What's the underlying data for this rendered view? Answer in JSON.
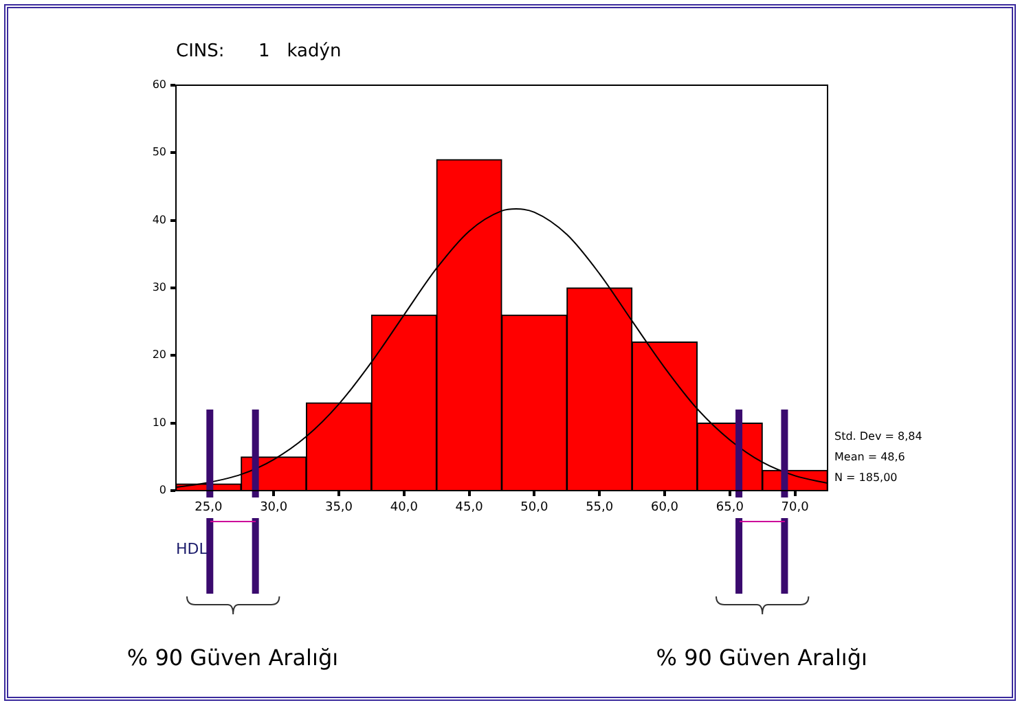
{
  "chart_data": {
    "type": "histogram",
    "title": "CINS:      1   kadýn",
    "xlabel": "HDL",
    "bins": [
      22.5,
      27.5,
      32.5,
      37.5,
      42.5,
      47.5,
      52.5,
      57.5,
      62.5,
      67.5,
      72.5
    ],
    "values": [
      1,
      5,
      13,
      26,
      49,
      26,
      30,
      22,
      10,
      3
    ],
    "color": "#ff0000",
    "series": [
      {
        "type": "line",
        "color": "#000000",
        "x": [
          22.5,
          25,
          27.5,
          30,
          32.5,
          35,
          37.5,
          40,
          42.5,
          45,
          47.5,
          48.6,
          50,
          52.5,
          55,
          57.5,
          60,
          62.5,
          65,
          67.5,
          70,
          72.5
        ],
        "values": [
          0.5,
          1.2,
          2.4,
          4.6,
          8.0,
          12.8,
          19.0,
          26.0,
          32.9,
          38.4,
          41.4,
          41.7,
          41.2,
          37.9,
          32.1,
          25.1,
          18.2,
          12.1,
          7.5,
          4.2,
          2.2,
          1.1
        ]
      }
    ],
    "xlim": [
      22.5,
      72.5
    ],
    "ylim": [
      0,
      60
    ],
    "xticks": [
      {
        "value": 25,
        "label": "25,0"
      },
      {
        "value": 30,
        "label": "30,0"
      },
      {
        "value": 35,
        "label": "35,0"
      },
      {
        "value": 40,
        "label": "40,0"
      },
      {
        "value": 45,
        "label": "45,0"
      },
      {
        "value": 50,
        "label": "50,0"
      },
      {
        "value": 55,
        "label": "55,0"
      },
      {
        "value": 60,
        "label": "60,0"
      },
      {
        "value": 65,
        "label": "65,0"
      },
      {
        "value": 70,
        "label": "70,0"
      }
    ],
    "yticks": [
      0,
      10,
      20,
      30,
      40,
      50,
      60
    ],
    "grid": false,
    "legend": false,
    "ref_lines": [
      {
        "axis": "x",
        "value": 25.1,
        "color": "#3a0a6e"
      },
      {
        "axis": "x",
        "value": 28.6,
        "color": "#3a0a6e"
      },
      {
        "axis": "x",
        "value": 65.7,
        "color": "#3a0a6e"
      },
      {
        "axis": "x",
        "value": 69.2,
        "color": "#3a0a6e"
      }
    ],
    "annotations": [
      "Std. Dev = 8,84",
      "Mean = 48,6",
      "N = 185,00",
      "% 90 Güven Aralığı",
      "% 90 Güven Aralığı"
    ]
  }
}
